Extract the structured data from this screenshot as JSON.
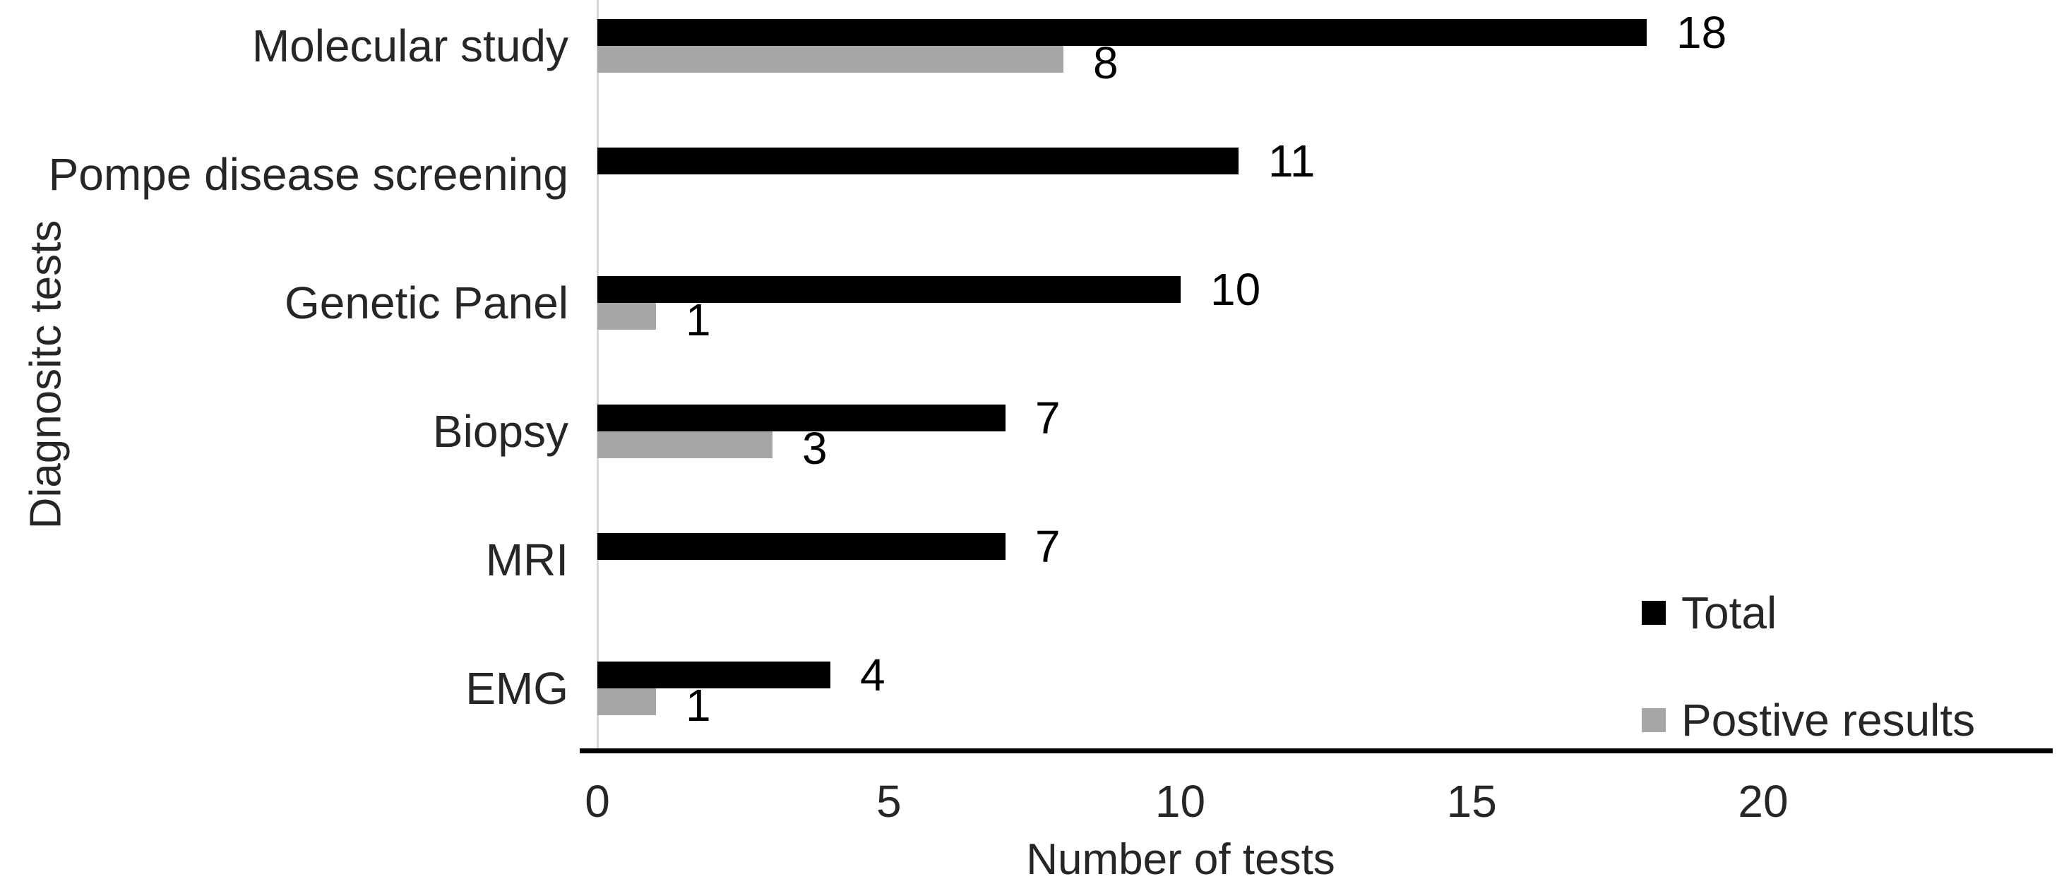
{
  "chart_data": {
    "type": "bar",
    "orientation": "horizontal",
    "title": "",
    "xlabel": "Number of tests",
    "ylabel": "Diagnositc tests",
    "categories": [
      "Molecular study",
      "Pompe disease screening",
      "Genetic Panel",
      "Biopsy",
      "MRI",
      "EMG"
    ],
    "series": [
      {
        "name": "Total",
        "color": "#000000",
        "values": [
          18,
          11,
          10,
          7,
          7,
          4
        ]
      },
      {
        "name": "Postive results",
        "color": "#a6a6a6",
        "values": [
          8,
          null,
          1,
          3,
          null,
          1
        ]
      }
    ],
    "data_labels": true,
    "xticks": [
      0,
      5,
      10,
      15,
      20
    ],
    "xlim": [
      0,
      24.95
    ],
    "grid": false,
    "legend_position": "right",
    "colors": {
      "total_series": "#000000",
      "positive_series": "#a6a6a6",
      "x_axis_line": "#000000",
      "y_axis_line": "#d9d9d9",
      "text": "#262626",
      "background": "#ffffff"
    }
  }
}
